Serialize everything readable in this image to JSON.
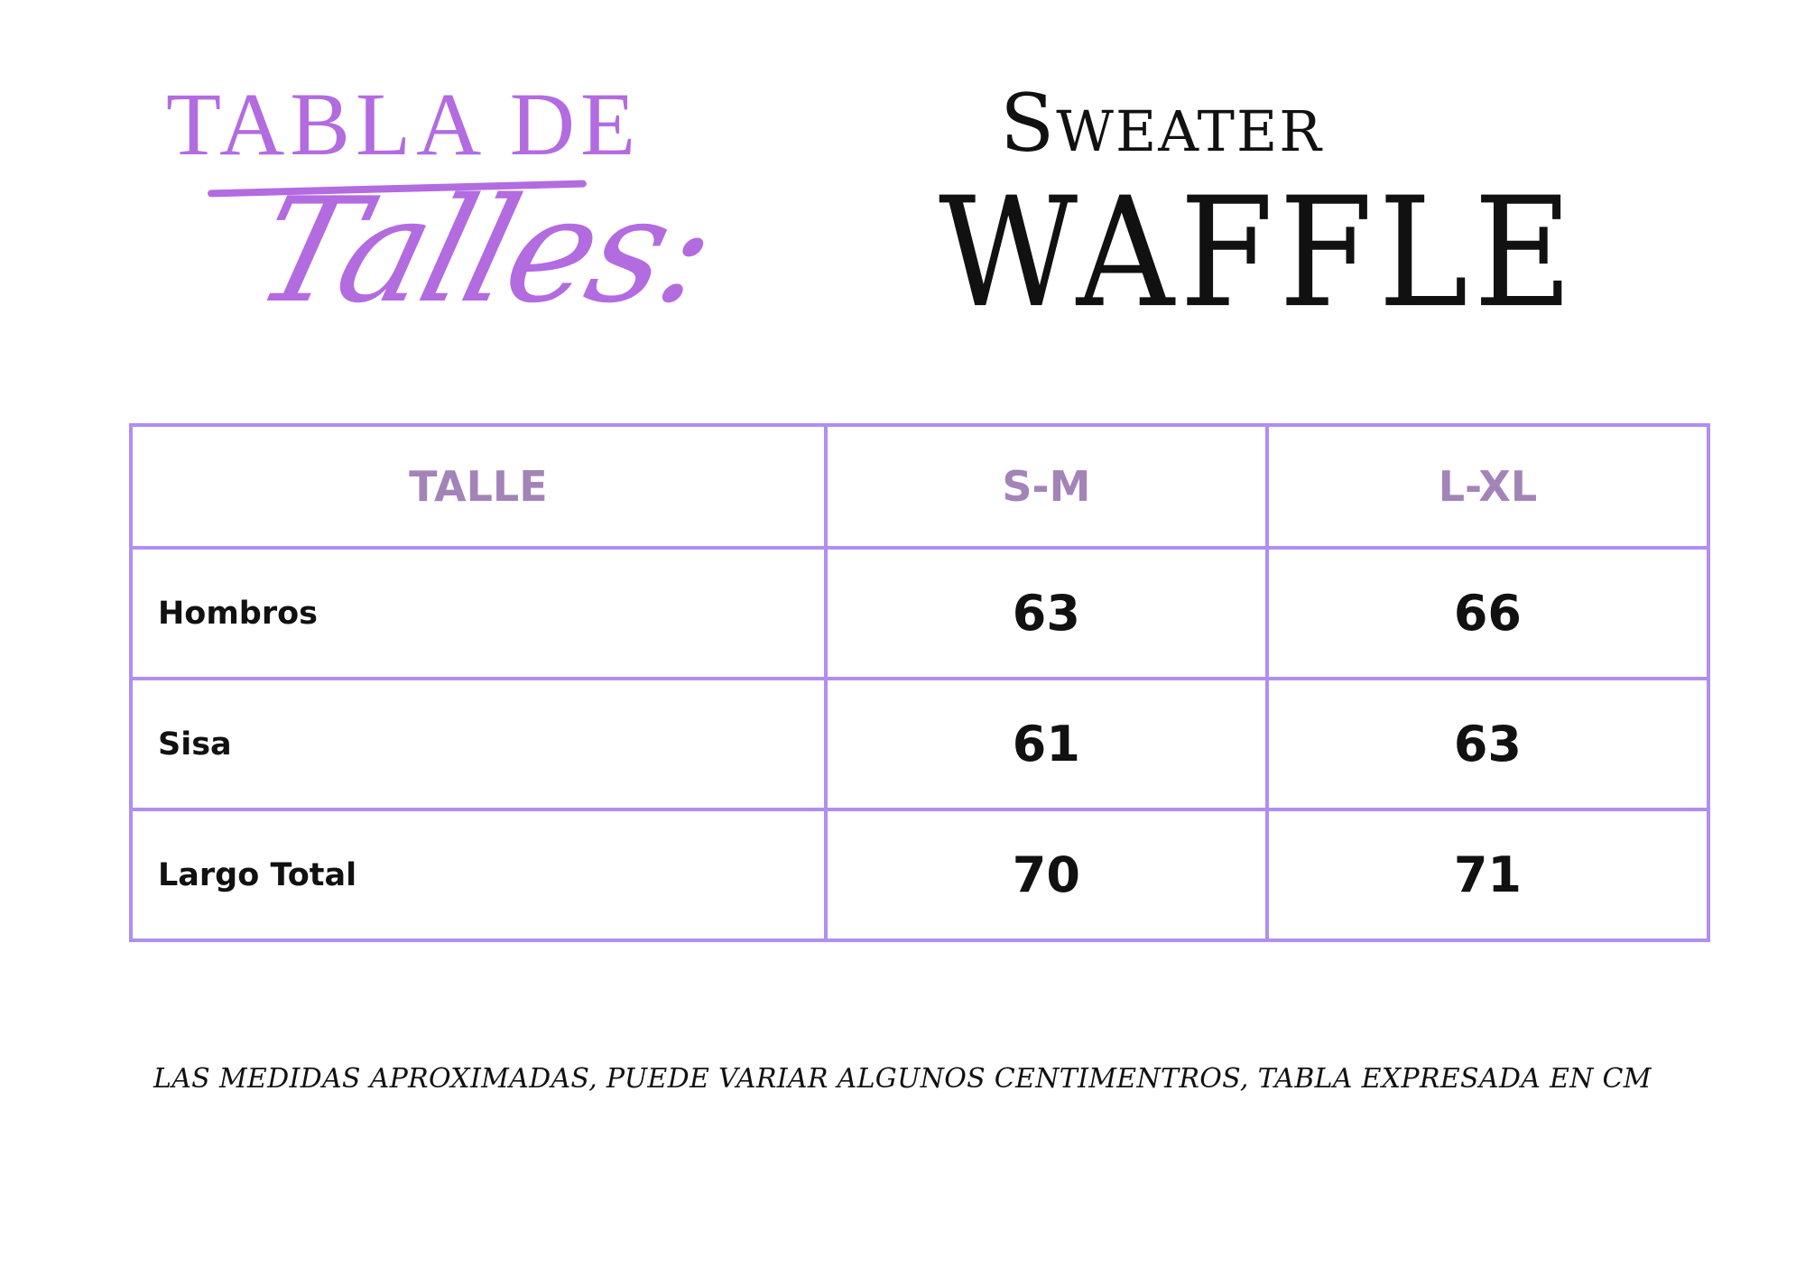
{
  "heading": {
    "line1": "TABLA DE",
    "line2": "Talles:",
    "product_line1": "Sweater",
    "product_line2": "WAFFLE"
  },
  "table": {
    "headers": [
      "TALLE",
      "S-M",
      "L-XL"
    ],
    "rows": [
      {
        "label": "Hombros",
        "values": [
          "63",
          "66"
        ]
      },
      {
        "label": "Sisa",
        "values": [
          "61",
          "63"
        ]
      },
      {
        "label": "Largo Total",
        "values": [
          "70",
          "71"
        ]
      }
    ]
  },
  "note": "LAS MEDIDAS APROXIMADAS, PUEDE VARIAR ALGUNOS CENTIMENTROS, TABLA EXPRESADA EN CM",
  "colors": {
    "accent_purple": "#b36be0",
    "table_border": "#b18ef0",
    "header_text": "#a384b8",
    "text": "#111111"
  }
}
